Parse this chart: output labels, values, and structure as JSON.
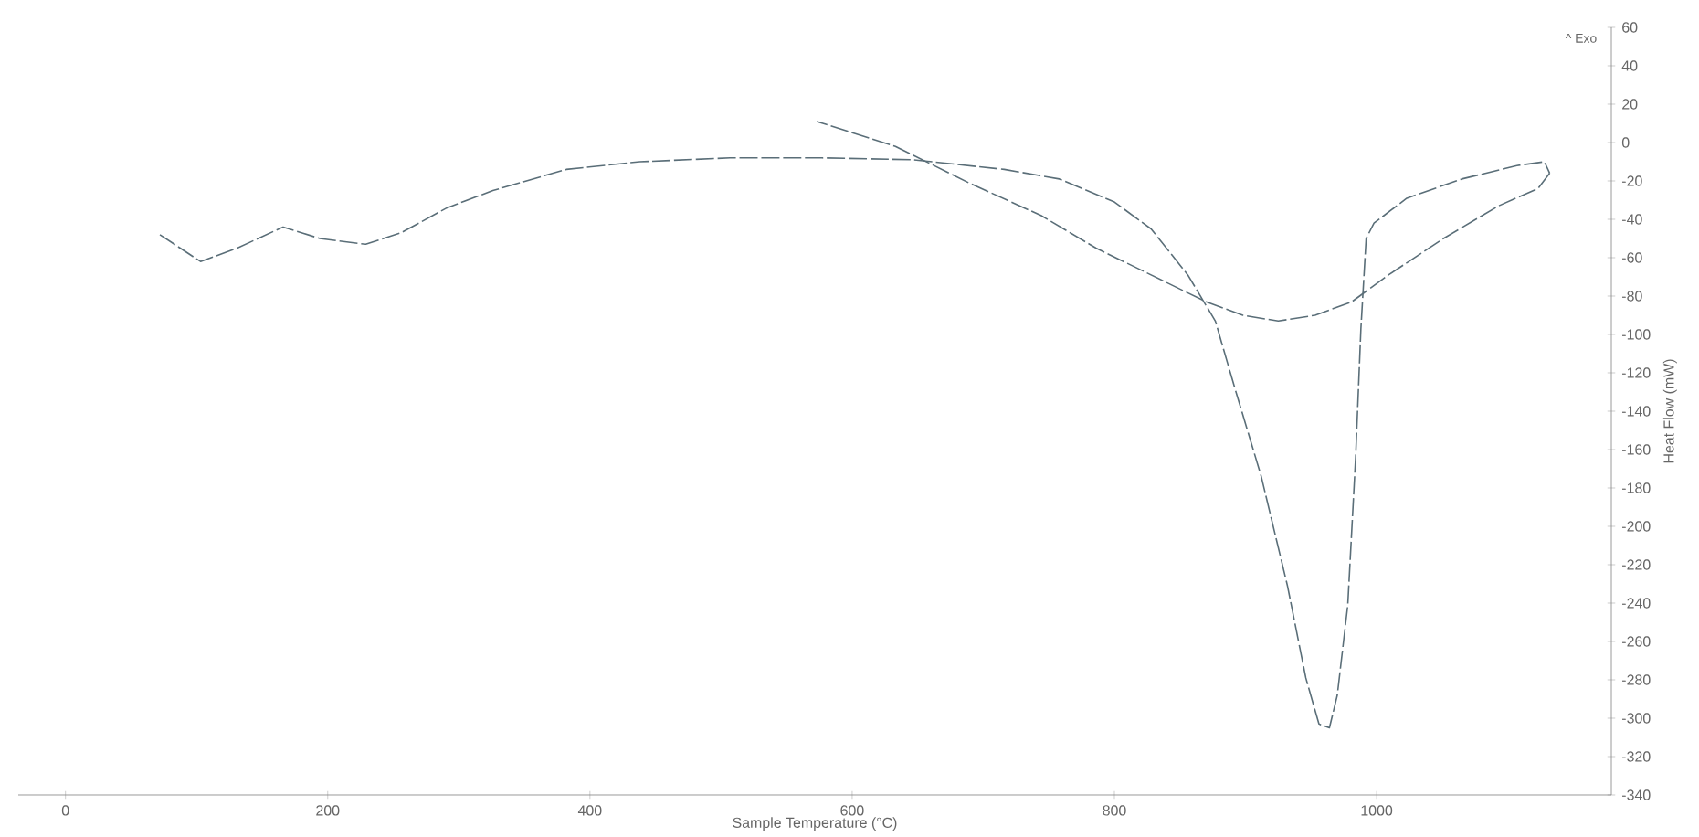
{
  "chart_data": {
    "type": "line",
    "xlabel": "Sample Temperature (°C)",
    "ylabel": "Heat Flow (mW)",
    "annotations": [
      "^ Exo"
    ],
    "xlim": [
      -36,
      1179
    ],
    "ylim": [
      -340,
      60
    ],
    "xticks": [
      0,
      200,
      400,
      600,
      800,
      1000
    ],
    "yticks": [
      60,
      40,
      20,
      0,
      -20,
      -40,
      -60,
      -80,
      -100,
      -120,
      -140,
      -160,
      -180,
      -200,
      -220,
      -240,
      -260,
      -280,
      -300,
      -320,
      -340
    ],
    "grid": false,
    "line_style": "dashed",
    "marker": "none",
    "series": [
      {
        "color": "#5a6e78",
        "x": [
          72,
          103,
          131,
          166,
          194,
          229,
          256,
          291,
          326,
          382,
          438,
          507,
          577,
          647,
          716,
          758,
          800,
          828,
          856,
          877,
          891,
          912,
          932,
          946,
          956,
          964,
          970,
          978,
          984,
          988,
          992,
          998,
          1023,
          1065,
          1107,
          1128,
          1132
        ],
        "values": [
          -48,
          -62,
          -55,
          -44,
          -50,
          -53,
          -47,
          -34,
          -25,
          -14,
          -10,
          -8,
          -8,
          -9,
          -14,
          -19,
          -31,
          -45,
          -69,
          -93,
          -126,
          -174,
          -231,
          -279,
          -303,
          -305,
          -288,
          -241,
          -164,
          -97,
          -50,
          -42,
          -29,
          -19,
          -12,
          -10,
          -16
        ]
      },
      {
        "color": "#5a6e78",
        "x": [
          1132,
          1123,
          1093,
          1051,
          1009,
          981,
          953,
          925,
          898,
          870,
          828,
          786,
          744,
          689,
          633,
          573
        ],
        "values": [
          -16,
          -24,
          -33,
          -50,
          -69,
          -83,
          -90,
          -93,
          -90,
          -83,
          -69,
          -55,
          -38,
          -21,
          -2,
          11
        ]
      }
    ]
  }
}
